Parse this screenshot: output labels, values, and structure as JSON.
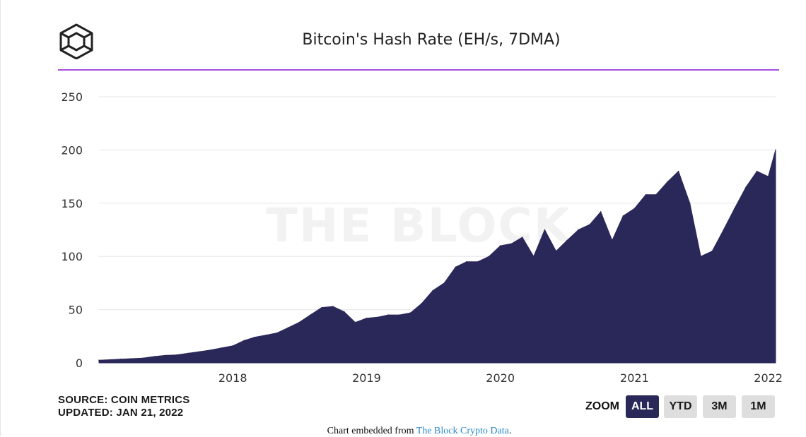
{
  "chart_data": {
    "type": "area",
    "title": "Bitcoin's Hash Rate (EH/s, 7DMA)",
    "xlabel": "",
    "ylabel": "",
    "ylim": [
      0,
      250
    ],
    "yticks": [
      "0",
      "50",
      "100",
      "150",
      "200",
      "250"
    ],
    "xticks": [
      "2018",
      "2019",
      "2020",
      "2021",
      "2022"
    ],
    "xlim": [
      "2017-01-01",
      "2022-01-21"
    ],
    "grid": true,
    "color": "#2a2859",
    "series": [
      {
        "values": [
          [
            "2017-01-01",
            2.5
          ],
          [
            "2017-02-01",
            3
          ],
          [
            "2017-03-01",
            3.5
          ],
          [
            "2017-04-01",
            4
          ],
          [
            "2017-05-01",
            4.5
          ],
          [
            "2017-06-01",
            6
          ],
          [
            "2017-07-01",
            7
          ],
          [
            "2017-08-01",
            7.5
          ],
          [
            "2017-09-01",
            9
          ],
          [
            "2017-10-01",
            10.5
          ],
          [
            "2017-11-01",
            12
          ],
          [
            "2017-12-01",
            14
          ],
          [
            "2018-01-01",
            16
          ],
          [
            "2018-02-01",
            21
          ],
          [
            "2018-03-01",
            24
          ],
          [
            "2018-04-01",
            26
          ],
          [
            "2018-05-01",
            28
          ],
          [
            "2018-06-01",
            33
          ],
          [
            "2018-07-01",
            38
          ],
          [
            "2018-08-01",
            45
          ],
          [
            "2018-09-01",
            52
          ],
          [
            "2018-10-01",
            53
          ],
          [
            "2018-11-01",
            48
          ],
          [
            "2018-12-01",
            38
          ],
          [
            "2019-01-01",
            42
          ],
          [
            "2019-02-01",
            43
          ],
          [
            "2019-03-01",
            45
          ],
          [
            "2019-04-01",
            45
          ],
          [
            "2019-05-01",
            47
          ],
          [
            "2019-06-01",
            56
          ],
          [
            "2019-07-01",
            68
          ],
          [
            "2019-08-01",
            75
          ],
          [
            "2019-09-01",
            90
          ],
          [
            "2019-10-01",
            95
          ],
          [
            "2019-11-01",
            95
          ],
          [
            "2019-12-01",
            100
          ],
          [
            "2020-01-01",
            110
          ],
          [
            "2020-02-01",
            112
          ],
          [
            "2020-03-01",
            118
          ],
          [
            "2020-04-01",
            100
          ],
          [
            "2020-05-01",
            125
          ],
          [
            "2020-06-01",
            105
          ],
          [
            "2020-07-01",
            115
          ],
          [
            "2020-08-01",
            125
          ],
          [
            "2020-09-01",
            130
          ],
          [
            "2020-10-01",
            142
          ],
          [
            "2020-11-01",
            115
          ],
          [
            "2020-12-01",
            138
          ],
          [
            "2021-01-01",
            145
          ],
          [
            "2021-02-01",
            158
          ],
          [
            "2021-03-01",
            158
          ],
          [
            "2021-04-01",
            170
          ],
          [
            "2021-05-01",
            180
          ],
          [
            "2021-06-01",
            150
          ],
          [
            "2021-07-01",
            100
          ],
          [
            "2021-08-01",
            105
          ],
          [
            "2021-09-01",
            125
          ],
          [
            "2021-10-01",
            145
          ],
          [
            "2021-11-01",
            165
          ],
          [
            "2021-12-01",
            180
          ],
          [
            "2022-01-01",
            175
          ],
          [
            "2022-01-21",
            200
          ]
        ]
      }
    ]
  },
  "watermark": "THE BLOCK",
  "source_label": "SOURCE: COIN METRICS",
  "updated_label": "UPDATED: JAN 21, 2022",
  "zoom": {
    "label": "ZOOM",
    "options": [
      "ALL",
      "YTD",
      "3M",
      "1M"
    ],
    "active": "ALL"
  },
  "embed": {
    "prefix": "Chart embedded from ",
    "link": "The Block Crypto Data",
    "suffix": "."
  },
  "colors": {
    "accent_rule": "#a64ee0",
    "area": "#2a2859",
    "zoom_active": "#2a2859"
  }
}
